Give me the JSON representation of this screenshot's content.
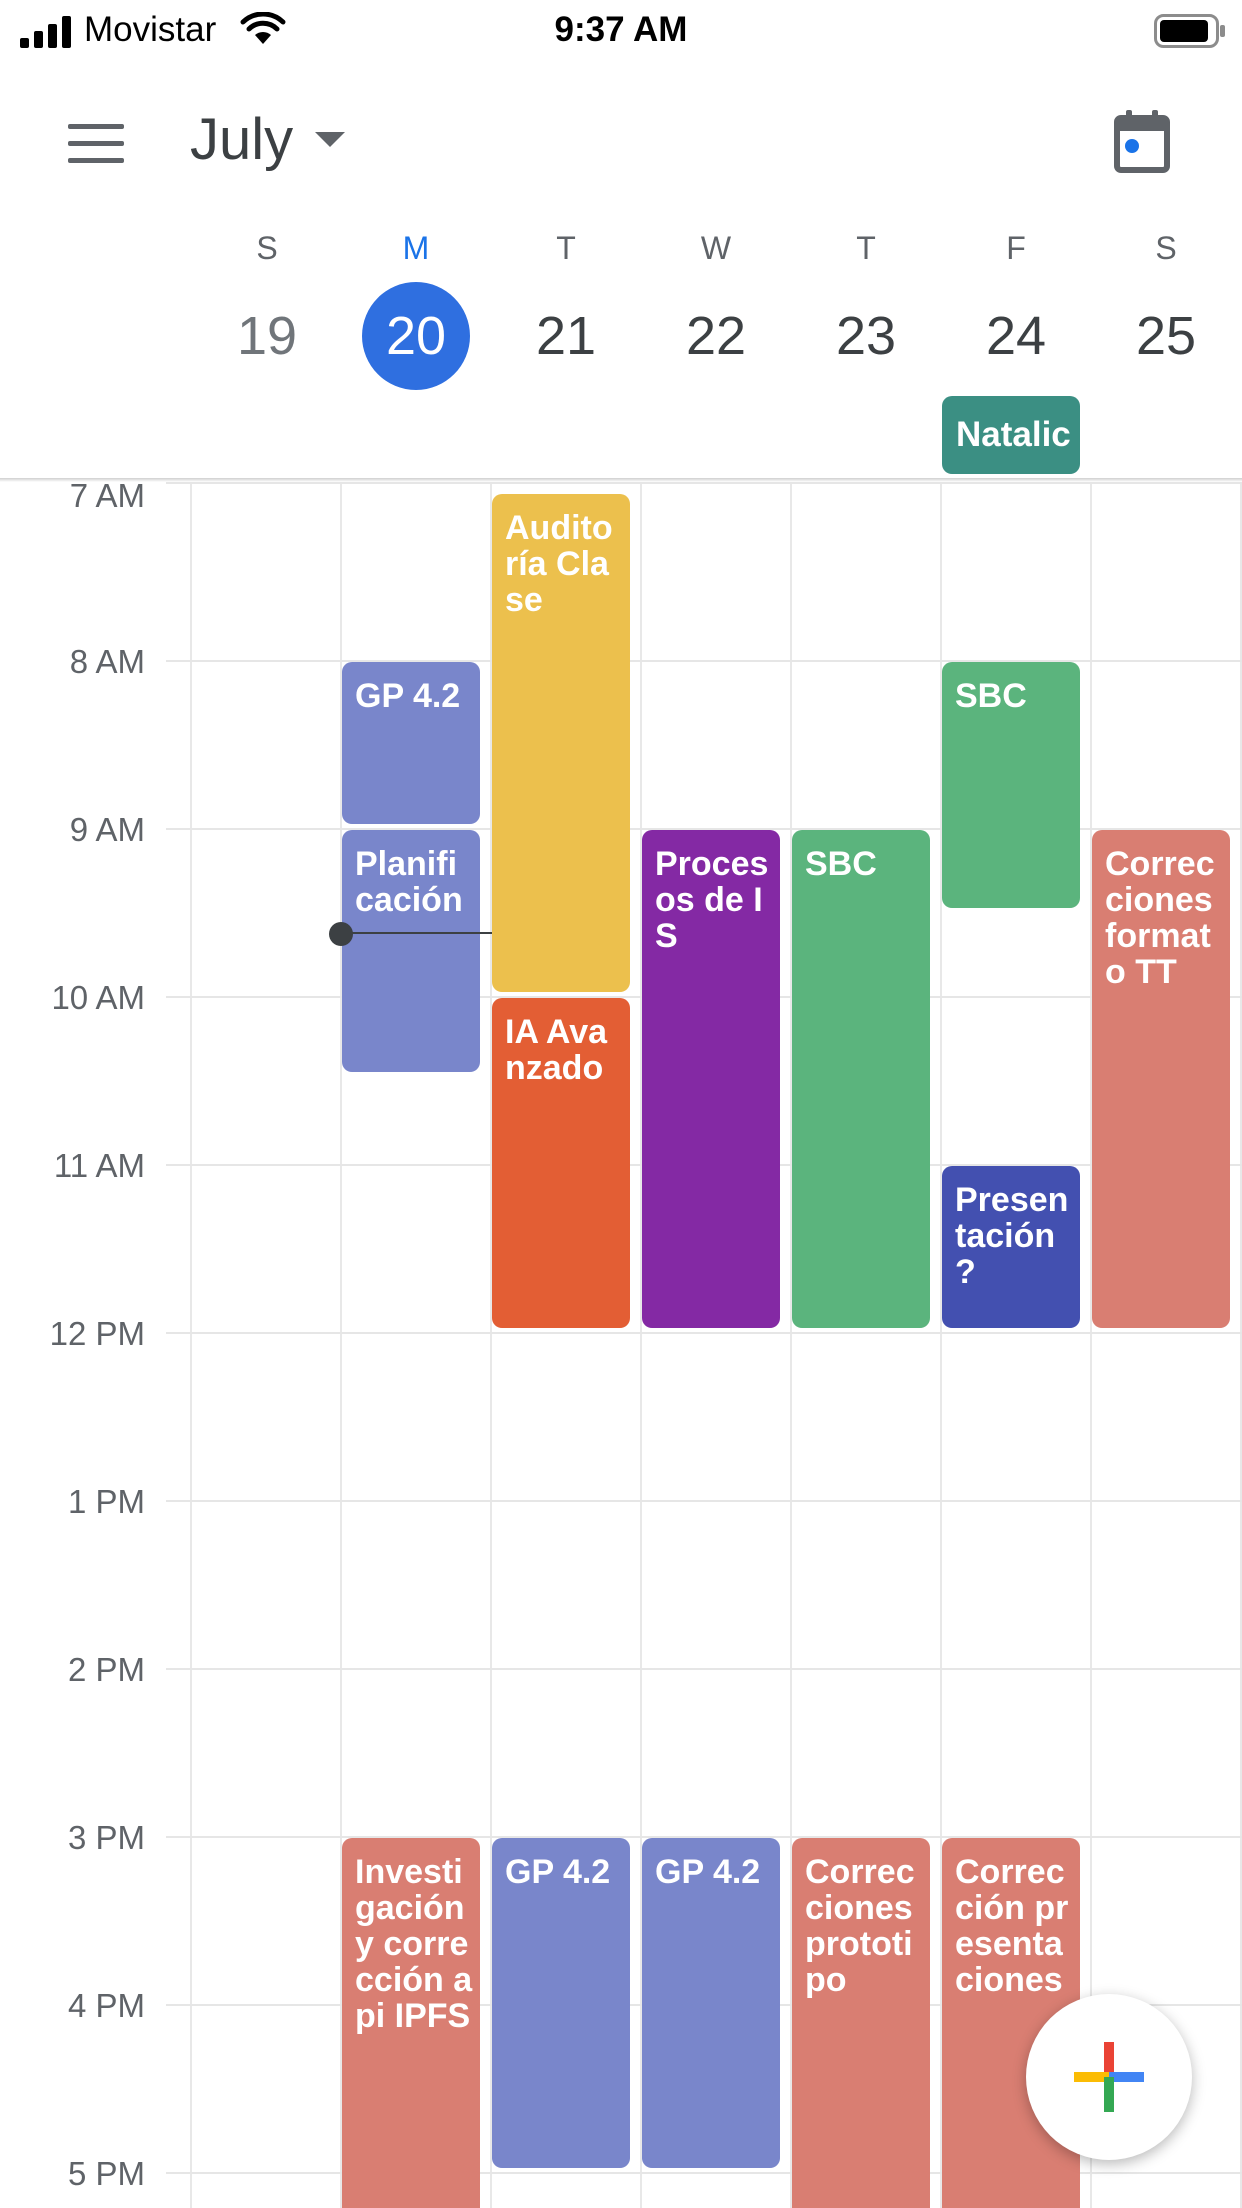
{
  "status_bar": {
    "carrier": "Movistar",
    "time": "9:37 AM"
  },
  "header": {
    "month": "July"
  },
  "week": [
    {
      "letter": "S",
      "number": "19"
    },
    {
      "letter": "M",
      "number": "20"
    },
    {
      "letter": "T",
      "number": "21"
    },
    {
      "letter": "W",
      "number": "22"
    },
    {
      "letter": "T",
      "number": "23"
    },
    {
      "letter": "F",
      "number": "24"
    },
    {
      "letter": "S",
      "number": "25"
    }
  ],
  "all_day_event": {
    "title": "Natalic"
  },
  "hours": [
    "7 AM",
    "8 AM",
    "9 AM",
    "10 AM",
    "11 AM",
    "12 PM",
    "1 PM",
    "2 PM",
    "3 PM",
    "4 PM",
    "5 PM"
  ],
  "events": [
    {
      "title": "GP 4.2",
      "color": "#7986cb"
    },
    {
      "title": "Planificación",
      "color": "#7986cb"
    },
    {
      "title": "Investigación y corrección api IPFS",
      "color": "#d97e72"
    },
    {
      "title": "Auditoría Clase",
      "color": "#ecc04d"
    },
    {
      "title": "IA Avanzado",
      "color": "#e35e34"
    },
    {
      "title": "GP 4.2",
      "color": "#7986cb"
    },
    {
      "title": "Procesos de IS",
      "color": "#8429a4"
    },
    {
      "title": "GP 4.2",
      "color": "#7986cb"
    },
    {
      "title": "SBC",
      "color": "#5bb47d"
    },
    {
      "title": "Correcciones prototipo",
      "color": "#d97e72"
    },
    {
      "title": "SBC",
      "color": "#5bb47d"
    },
    {
      "title": "Presentación ?",
      "color": "#4350b0"
    },
    {
      "title": "Corrección presentaciones",
      "color": "#d97e72"
    },
    {
      "title": "Correcciones formato TT",
      "color": "#d97e72"
    }
  ],
  "colors": {
    "today_accent": "#2f6fe0",
    "all_day": "#3b8f83"
  },
  "icons": {
    "menu": "hamburger-icon",
    "today": "calendar-today-icon",
    "create": "plus-icon"
  }
}
